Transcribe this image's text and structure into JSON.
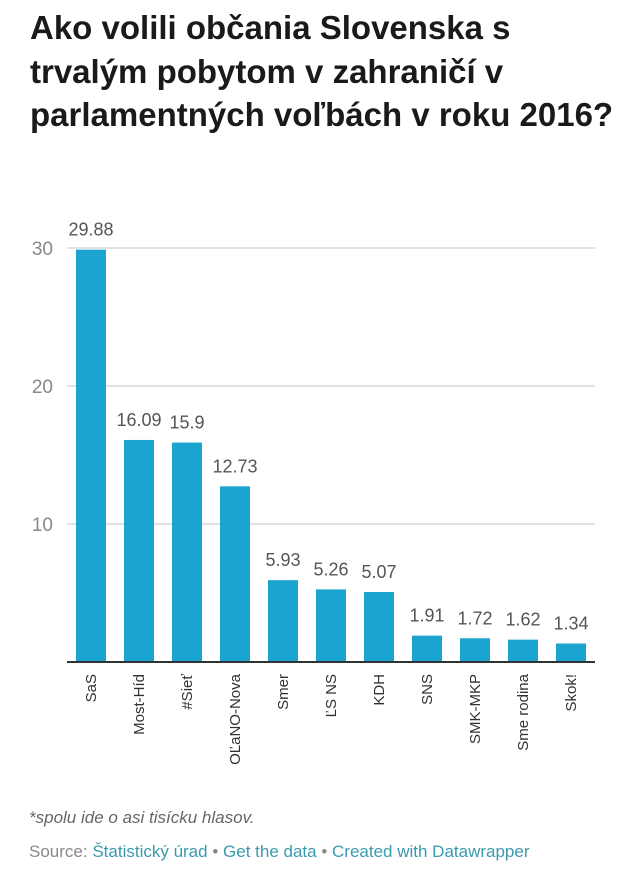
{
  "chart_data": {
    "type": "bar",
    "title": "Ako volili občania Slovenska s trvalým pobytom v zahraničí v parlamentných voľbách v roku 2016?",
    "categories": [
      "SaS",
      "Most-Híd",
      "#Sieť",
      "OĽaNO-Nova",
      "Smer",
      "ĽS NS",
      "KDH",
      "SNS",
      "SMK-MKP",
      "Sme rodina",
      "Skok!"
    ],
    "values": [
      29.88,
      16.09,
      15.9,
      12.73,
      5.93,
      5.26,
      5.07,
      1.91,
      1.72,
      1.62,
      1.34
    ],
    "value_labels": [
      "29.88",
      "16.09",
      "15.9",
      "12.73",
      "5.93",
      "5.26",
      "5.07",
      "1.91",
      "1.72",
      "1.62",
      "1.34"
    ],
    "xlabel": "",
    "ylabel": "",
    "ylim": [
      0,
      30
    ],
    "yticks": [
      10,
      20,
      30
    ],
    "grid": true,
    "bar_color": "#1ba4cf"
  },
  "footer": {
    "note": "*spolu ide o asi tisícku hlasov.",
    "source_label": "Source:",
    "source_link": "Štatistický úrad",
    "sep": "•",
    "get_data": "Get the data",
    "created_with": "Created with Datawrapper"
  }
}
